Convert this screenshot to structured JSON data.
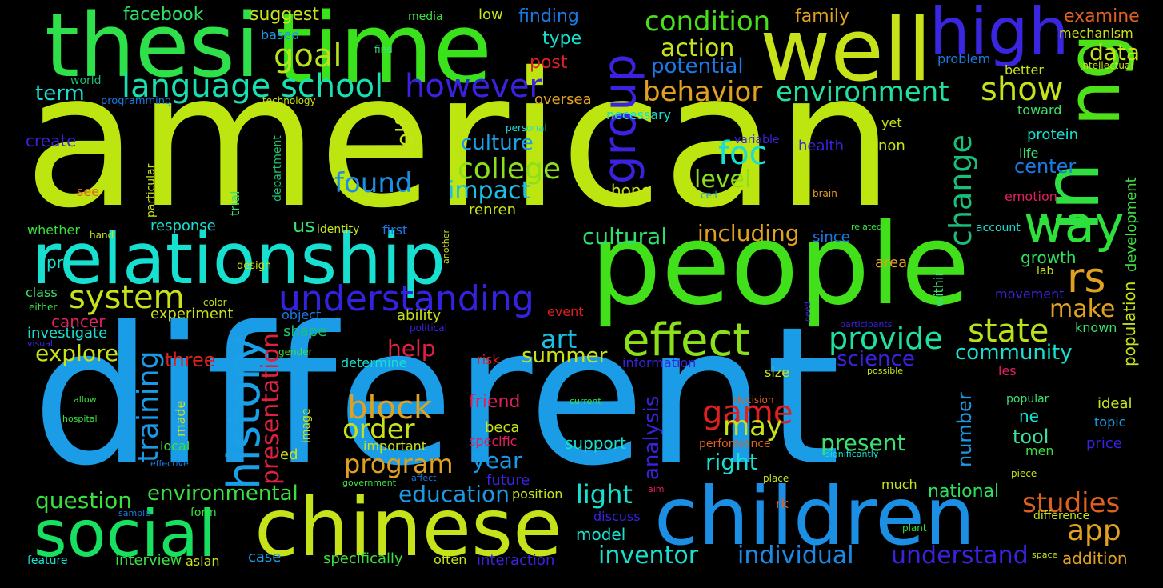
{
  "words": {
    "american": "american",
    "different": "different",
    "people": "people",
    "relationship": "relationship",
    "children": "children",
    "chinese": "chinese",
    "social": "social",
    "time": "time",
    "thesi": "thesi",
    "well": "well",
    "high": "high",
    "in": "in",
    "ng": "ng",
    "way": "way",
    "rs": "rs",
    "effect": "effect",
    "history": "history",
    "group": "group",
    "understanding": "understanding",
    "language_school": "language school",
    "however": "however",
    "system": "system",
    "goal": "goal",
    "condition": "condition",
    "behavior": "behavior",
    "environment": "environment",
    "show": "show",
    "state": "state",
    "provide": "provide",
    "college": "college",
    "foc": "foc",
    "found": "found",
    "impact": "impact",
    "culture": "culture",
    "level": "level",
    "change": "change",
    "self": "self",
    "action": "action",
    "potential": "potential",
    "data": "data",
    "app": "app",
    "studies": "studies",
    "understand": "understand",
    "individual": "individual",
    "inventor": "inventor",
    "light": "light",
    "education": "education",
    "program": "program",
    "order": "order",
    "block": "block",
    "game": "game",
    "may": "may",
    "present": "present",
    "training": "training",
    "presentation": "presentation",
    "analysis": "analysis",
    "cultural": "cultural",
    "including": "including",
    "art": "art",
    "help": "help",
    "science": "science",
    "community": "community",
    "make": "make",
    "summer": "summer",
    "explore": "explore",
    "question": "question",
    "environmental": "environmental",
    "year": "year",
    "right": "right",
    "tool": "tool",
    "number": "number",
    "facebook": "facebook",
    "suggest": "suggest",
    "media": "media",
    "low": "low",
    "finding": "finding",
    "family": "family",
    "examine": "examine",
    "mechanism": "mechanism",
    "type": "type",
    "post": "post",
    "based": "based",
    "find": "find",
    "world": "world",
    "term": "term",
    "programming": "programming",
    "technology": "technology",
    "oversea": "oversea",
    "problem": "problem",
    "better": "better",
    "intellectual": "intellectual",
    "toward": "toward",
    "necessary": "necessary",
    "create": "create",
    "personal": "personal",
    "variable": "variable",
    "health": "health",
    "non": "non",
    "yet": "yet",
    "protein": "protein",
    "life": "life",
    "center": "center",
    "development": "development",
    "department": "department",
    "particular": "particular",
    "trial": "trial",
    "hope": "hope",
    "see": "see",
    "cell": "cell",
    "brain": "brain",
    "emotion": "emotion",
    "renren": "renren",
    "us": "us",
    "identity": "identity",
    "first": "first",
    "since": "since",
    "related": "related",
    "account": "account",
    "whether": "whether",
    "hand": "hand",
    "response": "response",
    "another": "another",
    "growth": "growth",
    "population": "population",
    "pr": "pr",
    "design": "design",
    "lab": "lab",
    "area": "area",
    "within": "within",
    "class": "class",
    "either": "either",
    "color": "color",
    "experiment": "experiment",
    "event": "event",
    "movement": "movement",
    "cancer": "cancer",
    "investigate": "investigate",
    "object": "object",
    "shape": "shape",
    "ability": "ability",
    "political": "political",
    "participants": "participants",
    "need": "need",
    "known": "known",
    "visual": "visual",
    "gender": "gender",
    "three": "three",
    "risk": "risk",
    "determine": "determine",
    "information": "information",
    "possible": "possible",
    "les": "les",
    "size": "size",
    "allow": "allow",
    "current": "current",
    "decision": "decision",
    "popular": "popular",
    "ideal": "ideal",
    "friend": "friend",
    "hospital": "hospital",
    "made": "made",
    "image": "image",
    "beca": "beca",
    "ne": "ne",
    "topic": "topic",
    "specific": "specific",
    "important": "important",
    "support": "support",
    "performance": "performance",
    "significantly": "significantly",
    "men": "men",
    "price": "price",
    "local": "local",
    "ed": "ed",
    "effective": "effective",
    "government": "government",
    "affect": "affect",
    "future": "future",
    "place": "place",
    "piece": "piece",
    "position": "position",
    "aim": "aim",
    "much": "much",
    "national": "national",
    "sample": "sample",
    "form": "form",
    "discuss": "discuss",
    "rk": "rk",
    "difference": "difference",
    "model": "model",
    "plant": "plant",
    "feature": "feature",
    "interview": "interview",
    "asian": "asian",
    "case": "case",
    "specifically": "specifically",
    "often": "often",
    "interaction": "interaction",
    "space": "space",
    "addition": "addition"
  }
}
